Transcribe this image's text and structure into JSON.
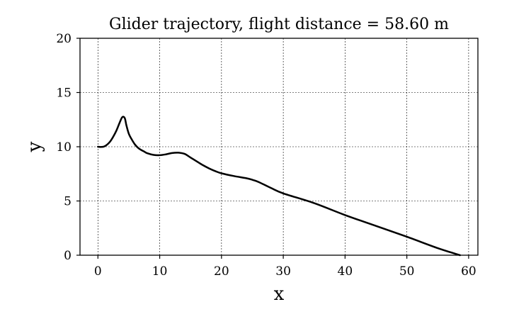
{
  "chart_data": {
    "type": "line",
    "title": "Glider trajectory, flight distance = 58.60 m",
    "xlabel": "x",
    "ylabel": "y",
    "xlim": [
      -2.9,
      61.5
    ],
    "ylim": [
      0,
      20
    ],
    "xticks": [
      0,
      10,
      20,
      30,
      40,
      50,
      60
    ],
    "yticks": [
      0,
      5,
      10,
      15,
      20
    ],
    "grid": true,
    "series": [
      {
        "color": "#000000",
        "x": [
          0,
          0.5,
          1,
          1.5,
          2,
          2.5,
          3,
          3.5,
          3.9,
          4.2,
          4.4,
          4.6,
          5,
          5.5,
          6,
          6.5,
          7,
          7.5,
          8,
          9,
          10,
          11,
          12,
          13,
          14,
          15,
          16,
          17,
          18,
          19,
          20,
          22,
          24,
          25,
          26,
          28,
          30,
          35,
          40,
          45,
          50,
          55,
          58.6
        ],
        "y": [
          10.0,
          9.98,
          10.02,
          10.2,
          10.5,
          10.95,
          11.5,
          12.2,
          12.7,
          12.75,
          12.55,
          12.0,
          11.2,
          10.65,
          10.2,
          9.9,
          9.7,
          9.55,
          9.4,
          9.25,
          9.22,
          9.3,
          9.42,
          9.45,
          9.35,
          9.0,
          8.65,
          8.3,
          8.0,
          7.75,
          7.55,
          7.3,
          7.1,
          6.95,
          6.75,
          6.2,
          5.7,
          4.8,
          3.7,
          2.7,
          1.7,
          0.65,
          0.0
        ]
      }
    ]
  }
}
